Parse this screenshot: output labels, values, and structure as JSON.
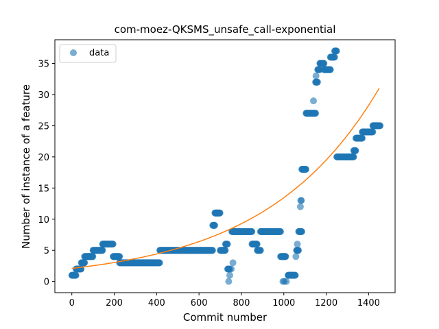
{
  "chart_data": {
    "type": "scatter",
    "title": "com-moez-QKSMS_unsafe_call-exponential",
    "xlabel": "Commit number",
    "ylabel": "Number of instance of a feature",
    "xlim": [
      -80,
      1525
    ],
    "ylim": [
      -1.8,
      38.8
    ],
    "xticks": [
      0,
      200,
      400,
      600,
      800,
      1000,
      1200,
      1400
    ],
    "yticks": [
      0,
      5,
      10,
      15,
      20,
      25,
      30,
      35
    ],
    "grid": false,
    "legend": {
      "position": "top-left",
      "entries": [
        "data"
      ]
    },
    "colors": {
      "data": "#1f77b4",
      "fit": "#ff7f0e"
    },
    "series": [
      {
        "name": "data",
        "style": "points",
        "segments": [
          [
            0,
            20,
            1
          ],
          [
            20,
            45,
            2
          ],
          [
            45,
            60,
            3
          ],
          [
            60,
            100,
            4
          ],
          [
            100,
            145,
            5
          ],
          [
            145,
            195,
            6
          ],
          [
            195,
            225,
            4
          ],
          [
            225,
            415,
            3
          ],
          [
            415,
            665,
            5
          ],
          [
            665,
            675,
            9
          ],
          [
            675,
            700,
            11
          ],
          [
            700,
            725,
            5
          ],
          [
            725,
            735,
            6
          ],
          [
            735,
            745,
            2
          ],
          [
            755,
            850,
            8
          ],
          [
            850,
            875,
            6
          ],
          [
            875,
            890,
            5
          ],
          [
            890,
            985,
            8
          ],
          [
            985,
            1010,
            4
          ],
          [
            1020,
            1055,
            1
          ],
          [
            1060,
            1070,
            5
          ],
          [
            1070,
            1085,
            8
          ],
          [
            1085,
            1105,
            18
          ],
          [
            1105,
            1150,
            27
          ],
          [
            1150,
            1160,
            32
          ],
          [
            1160,
            1170,
            34
          ],
          [
            1170,
            1190,
            35
          ],
          [
            1190,
            1220,
            34
          ],
          [
            1220,
            1240,
            36
          ],
          [
            1240,
            1250,
            37
          ],
          [
            1250,
            1330,
            20
          ],
          [
            1330,
            1340,
            21
          ],
          [
            1340,
            1370,
            23
          ],
          [
            1370,
            1420,
            24
          ],
          [
            1420,
            1455,
            25
          ]
        ],
        "points": [
          [
            2,
            1
          ],
          [
            6,
            1
          ],
          [
            10,
            1
          ],
          [
            15,
            1
          ],
          [
            740,
            0
          ],
          [
            745,
            1
          ],
          [
            752,
            2
          ],
          [
            760,
            3
          ],
          [
            996,
            0
          ],
          [
            1002,
            0
          ],
          [
            1012,
            0
          ],
          [
            1057,
            4
          ],
          [
            1064,
            6
          ],
          [
            1078,
            12
          ],
          [
            1080,
            13
          ],
          [
            1083,
            13
          ],
          [
            1140,
            29
          ],
          [
            1152,
            33
          ]
        ]
      },
      {
        "name": "",
        "style": "line",
        "fit": {
          "type": "exponential",
          "a": 2.1,
          "b": 0.001857,
          "x_start": 0,
          "x_end": 1450
        }
      }
    ]
  }
}
